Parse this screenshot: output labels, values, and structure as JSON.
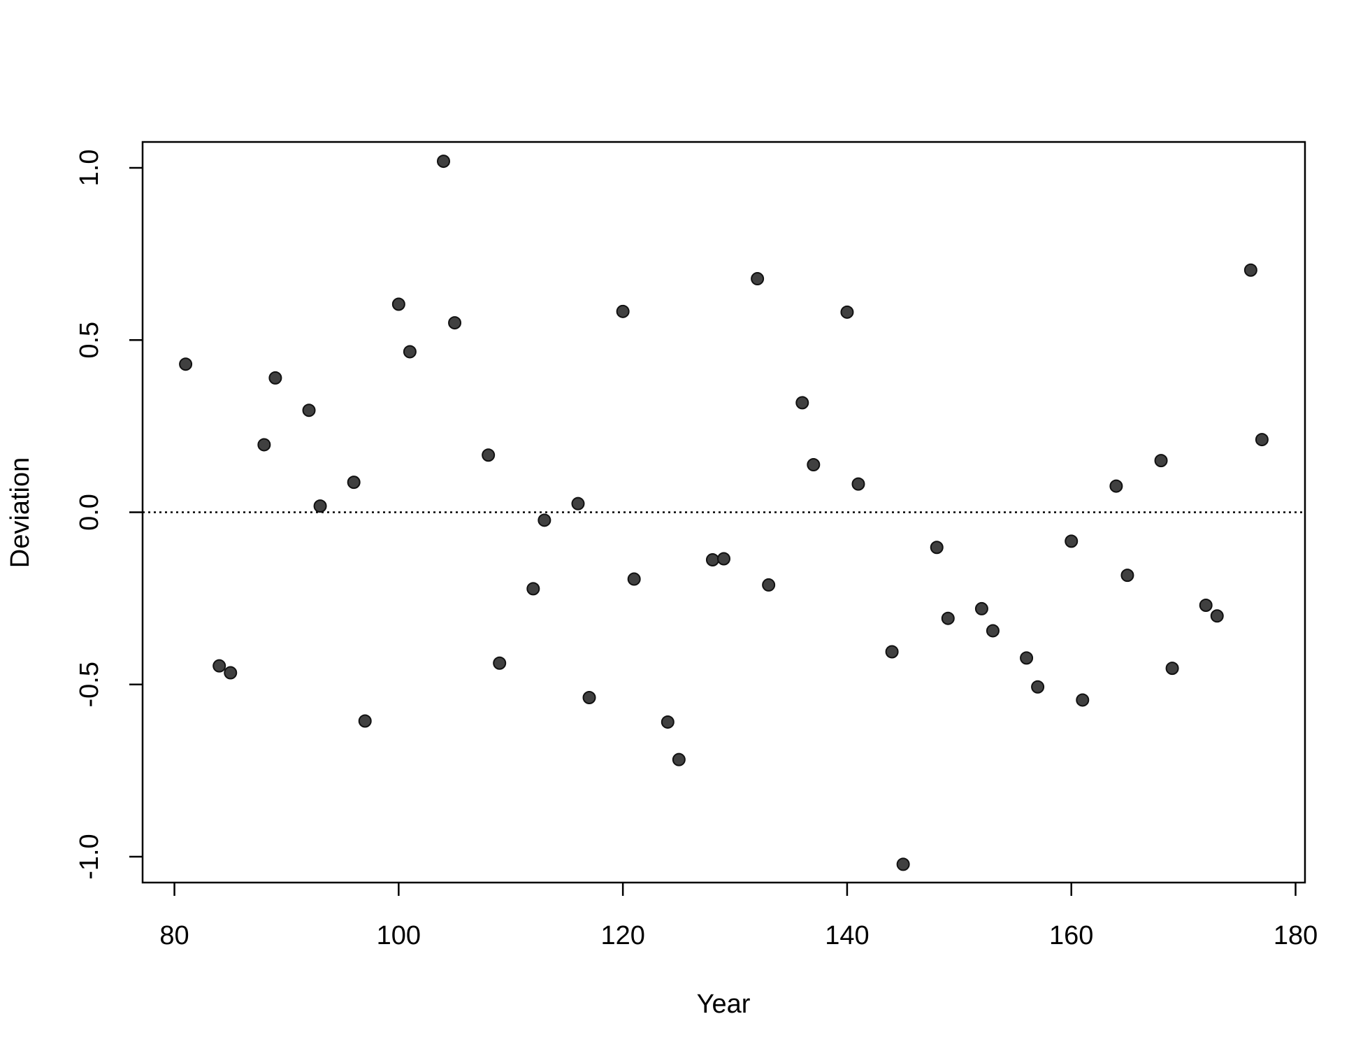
{
  "chart_data": {
    "type": "scatter",
    "xlabel": "Year",
    "ylabel": "Deviation",
    "x": [
      81,
      84,
      85,
      88,
      89,
      92,
      93,
      96,
      97,
      100,
      101,
      104,
      105,
      108,
      109,
      112,
      113,
      116,
      117,
      120,
      121,
      124,
      125,
      128,
      129,
      132,
      133,
      136,
      137,
      140,
      141,
      144,
      145,
      148,
      149,
      152,
      153,
      156,
      157,
      160,
      161,
      164,
      165,
      168,
      169,
      172,
      173,
      176,
      177
    ],
    "values": [
      0.43,
      -0.446,
      -0.466,
      0.196,
      0.39,
      0.296,
      0.018,
      0.087,
      -0.606,
      0.604,
      0.466,
      1.019,
      0.55,
      0.166,
      -0.438,
      -0.222,
      -0.023,
      0.025,
      -0.538,
      0.583,
      -0.194,
      -0.609,
      -0.718,
      -0.138,
      -0.135,
      0.678,
      -0.211,
      0.318,
      0.138,
      0.581,
      0.082,
      -0.405,
      -1.022,
      -0.102,
      -0.308,
      -0.28,
      -0.344,
      -0.423,
      -0.507,
      -0.084,
      -0.545,
      0.076,
      -0.183,
      0.15,
      -0.453,
      -0.27,
      -0.301,
      0.703,
      0.211
    ],
    "color": "#404040",
    "xlim": [
      77.16,
      180.84
    ],
    "ylim": [
      -1.075,
      1.075
    ],
    "xticks": [
      80,
      100,
      120,
      140,
      160,
      180
    ],
    "yticks": [
      {
        "value": -1,
        "label": "-1.0"
      },
      -0.5,
      {
        "value": 0,
        "label": "0.0"
      },
      0.5,
      {
        "value": 1,
        "label": "1.0"
      }
    ],
    "reference_line": 0
  }
}
